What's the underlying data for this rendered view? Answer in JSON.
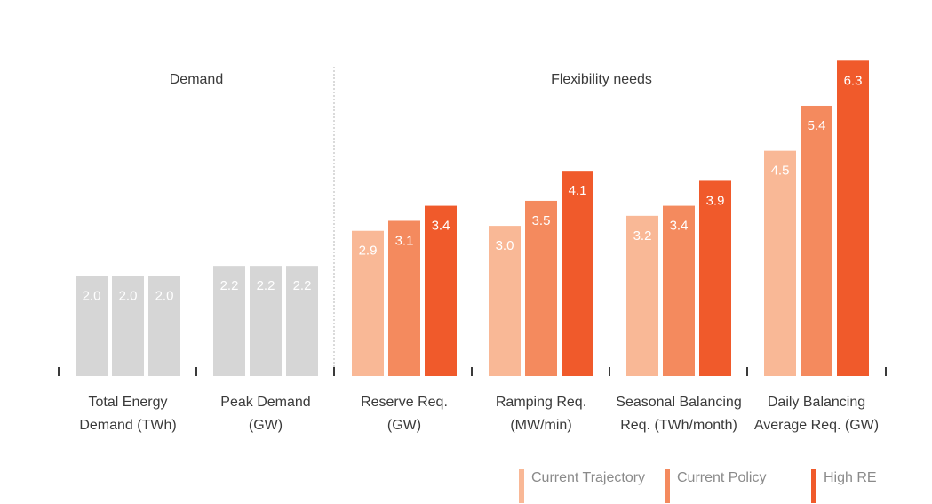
{
  "chart_data": {
    "type": "bar",
    "sections": [
      {
        "title": "Demand",
        "groups": [
          0,
          1
        ]
      },
      {
        "title": "Flexibility needs",
        "groups": [
          2,
          3,
          4,
          5
        ]
      }
    ],
    "groups": [
      {
        "label_lines": [
          "Total Energy",
          "Demand (TWh)"
        ],
        "values": [
          2.0,
          2.0,
          2.0
        ],
        "display": [
          "2.0",
          "2.0",
          "2.0"
        ],
        "style": "grey"
      },
      {
        "label_lines": [
          "Peak Demand",
          "(GW)"
        ],
        "values": [
          2.2,
          2.2,
          2.2
        ],
        "display": [
          "2.2",
          "2.2",
          "2.2"
        ],
        "style": "grey"
      },
      {
        "label_lines": [
          "Reserve Req.",
          "(GW)"
        ],
        "values": [
          2.9,
          3.1,
          3.4
        ],
        "display": [
          "2.9",
          "3.1",
          "3.4"
        ],
        "style": "series"
      },
      {
        "label_lines": [
          "Ramping Req.",
          "(MW/min)"
        ],
        "values": [
          3.0,
          3.5,
          4.1
        ],
        "display": [
          "3.0",
          "3.5",
          "4.1"
        ],
        "style": "series"
      },
      {
        "label_lines": [
          "Seasonal Balancing",
          "Req. (TWh/month)"
        ],
        "values": [
          3.2,
          3.4,
          3.9
        ],
        "display": [
          "3.2",
          "3.4",
          "3.9"
        ],
        "style": "series"
      },
      {
        "label_lines": [
          "Daily Balancing",
          "Average Req. (GW)"
        ],
        "values": [
          4.5,
          5.4,
          6.3
        ],
        "display": [
          "4.5",
          "5.4",
          "6.3"
        ],
        "style": "series"
      }
    ],
    "series": [
      {
        "name": "Current Trajectory",
        "color": "#f9b896"
      },
      {
        "name": "Current Policy",
        "color": "#f48a5e"
      },
      {
        "name": "High RE",
        "color": "#f05a2b"
      }
    ],
    "grey_color": "#d6d6d6",
    "axis_color": "#3a3a3a",
    "divider_color": "#b5b5b5"
  }
}
